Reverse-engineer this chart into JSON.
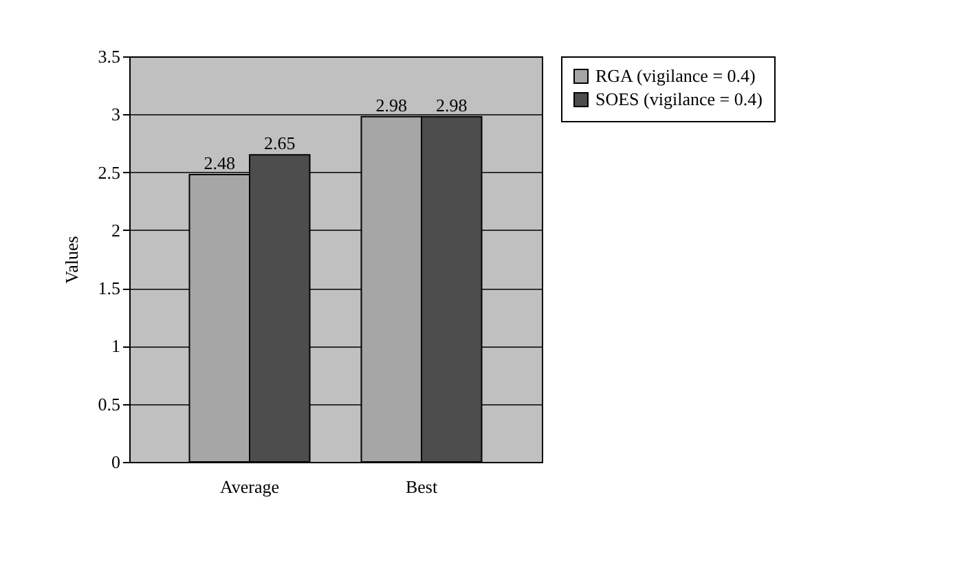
{
  "chart_data": {
    "type": "bar",
    "ylabel": "Values",
    "categories": [
      "Average",
      "Best"
    ],
    "series": [
      {
        "name": "RGA (vigilance = 0.4)",
        "color": "#a6a6a6",
        "values": [
          2.48,
          2.98
        ]
      },
      {
        "name": "SOES (vigilance = 0.4)",
        "color": "#4d4d4d",
        "values": [
          2.65,
          2.98
        ]
      }
    ],
    "ylim": [
      0,
      3.5
    ],
    "yticks": [
      0,
      0.5,
      1,
      1.5,
      2,
      2.5,
      3,
      3.5
    ],
    "grid": "y",
    "legend": "right",
    "data_labels": true
  }
}
